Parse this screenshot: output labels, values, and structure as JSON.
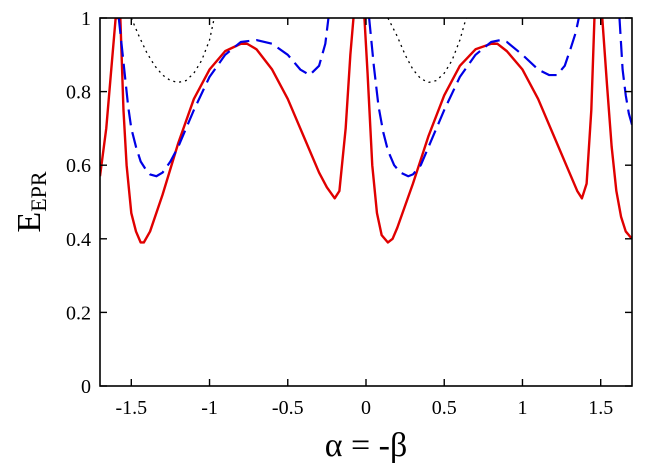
{
  "chart_data": {
    "type": "line",
    "xlabel": "α = -β",
    "ylabel": {
      "main": "E",
      "subscript": "EPR"
    },
    "xlim": [
      -1.7,
      1.7
    ],
    "ylim": [
      0,
      1
    ],
    "grid": false,
    "legend": "none",
    "x_ticks": [
      -1.5,
      -1,
      -0.5,
      0,
      0.5,
      1,
      1.5
    ],
    "x_tick_labels": [
      "-1.5",
      "-1",
      "-0.5",
      "0",
      "0.5",
      "1",
      "1.5"
    ],
    "y_ticks": [
      0,
      0.2,
      0.4,
      0.6,
      0.8,
      1
    ],
    "y_tick_labels": [
      "0",
      "0.2",
      "0.4",
      "0.6",
      "0.8",
      "1"
    ],
    "series": [
      {
        "style": "solid",
        "color": "#e00000",
        "x": [
          -1.7,
          -1.66,
          -1.63,
          -1.6,
          -1.57,
          -1.55,
          -1.53,
          -1.5,
          -1.47,
          -1.44,
          -1.42,
          -1.38,
          -1.3,
          -1.2,
          -1.1,
          -1.0,
          -0.9,
          -0.8,
          -0.76,
          -0.7,
          -0.6,
          -0.5,
          -0.4,
          -0.3,
          -0.25,
          -0.2,
          -0.17,
          -0.13,
          -0.1,
          -0.08
        ],
        "y": [
          0.57,
          0.7,
          0.85,
          1.0,
          1.0,
          0.75,
          0.6,
          0.47,
          0.42,
          0.39,
          0.39,
          0.42,
          0.52,
          0.66,
          0.78,
          0.86,
          0.91,
          0.93,
          0.93,
          0.915,
          0.86,
          0.78,
          0.68,
          0.58,
          0.54,
          0.51,
          0.53,
          0.7,
          0.9,
          1.0
        ]
      },
      {
        "style": "solid",
        "color": "#e00000",
        "x": [
          -0.01,
          0.01,
          0.04,
          0.07,
          0.1,
          0.14,
          0.17,
          0.2,
          0.3,
          0.4,
          0.5,
          0.6,
          0.7,
          0.8,
          0.84,
          0.9,
          1.0,
          1.1,
          1.2,
          1.3,
          1.35,
          1.38,
          1.41,
          1.44,
          1.46
        ],
        "y": [
          1.0,
          0.85,
          0.6,
          0.47,
          0.41,
          0.39,
          0.4,
          0.43,
          0.55,
          0.68,
          0.79,
          0.87,
          0.915,
          0.93,
          0.93,
          0.91,
          0.86,
          0.78,
          0.68,
          0.58,
          0.53,
          0.51,
          0.55,
          0.75,
          1.0
        ]
      },
      {
        "style": "solid",
        "color": "#e00000",
        "x": [
          1.51,
          1.54,
          1.57,
          1.6,
          1.63,
          1.66,
          1.7
        ],
        "y": [
          1.0,
          0.82,
          0.65,
          0.53,
          0.46,
          0.42,
          0.4
        ]
      },
      {
        "style": "dashed",
        "color": "#0000e6",
        "x": [
          -1.58,
          -1.55,
          -1.52,
          -1.5,
          -1.47,
          -1.44,
          -1.41,
          -1.38,
          -1.34,
          -1.3,
          -1.25,
          -1.2,
          -1.1,
          -1.0,
          -0.9,
          -0.8,
          -0.7,
          -0.6,
          -0.5,
          -0.42,
          -0.36,
          -0.3,
          -0.26,
          -0.24
        ],
        "y": [
          1.0,
          0.88,
          0.76,
          0.7,
          0.65,
          0.61,
          0.59,
          0.575,
          0.57,
          0.58,
          0.61,
          0.65,
          0.75,
          0.84,
          0.9,
          0.935,
          0.94,
          0.93,
          0.9,
          0.86,
          0.845,
          0.87,
          0.93,
          1.0
        ]
      },
      {
        "style": "dashed",
        "color": "#0000e6",
        "x": [
          0.02,
          0.05,
          0.08,
          0.11,
          0.14,
          0.18,
          0.22,
          0.27,
          0.3,
          0.35,
          0.4,
          0.5,
          0.6,
          0.7,
          0.8,
          0.86,
          0.9,
          1.0,
          1.1,
          1.17,
          1.22,
          1.27,
          1.31,
          1.34,
          1.36
        ],
        "y": [
          1.0,
          0.87,
          0.76,
          0.69,
          0.64,
          0.6,
          0.58,
          0.57,
          0.575,
          0.6,
          0.65,
          0.75,
          0.84,
          0.9,
          0.935,
          0.94,
          0.935,
          0.9,
          0.86,
          0.845,
          0.845,
          0.87,
          0.92,
          0.96,
          1.0
        ]
      },
      {
        "style": "dashed",
        "color": "#0000e6",
        "x": [
          1.62,
          1.64,
          1.66,
          1.68,
          1.7
        ],
        "y": [
          1.0,
          0.86,
          0.79,
          0.74,
          0.71
        ]
      },
      {
        "style": "dotted",
        "color": "#000000",
        "x": [
          -1.5,
          -1.45,
          -1.4,
          -1.35,
          -1.3,
          -1.25,
          -1.2,
          -1.15,
          -1.1,
          -1.05,
          -1.0,
          -0.97
        ],
        "y": [
          1.0,
          0.95,
          0.905,
          0.87,
          0.845,
          0.83,
          0.825,
          0.83,
          0.85,
          0.885,
          0.94,
          1.0
        ]
      },
      {
        "style": "dotted",
        "color": "#000000",
        "x": [
          0.14,
          0.2,
          0.25,
          0.3,
          0.35,
          0.4,
          0.45,
          0.5,
          0.55,
          0.6,
          0.64
        ],
        "y": [
          1.0,
          0.95,
          0.9,
          0.86,
          0.835,
          0.825,
          0.83,
          0.85,
          0.885,
          0.94,
          1.0
        ]
      }
    ]
  }
}
